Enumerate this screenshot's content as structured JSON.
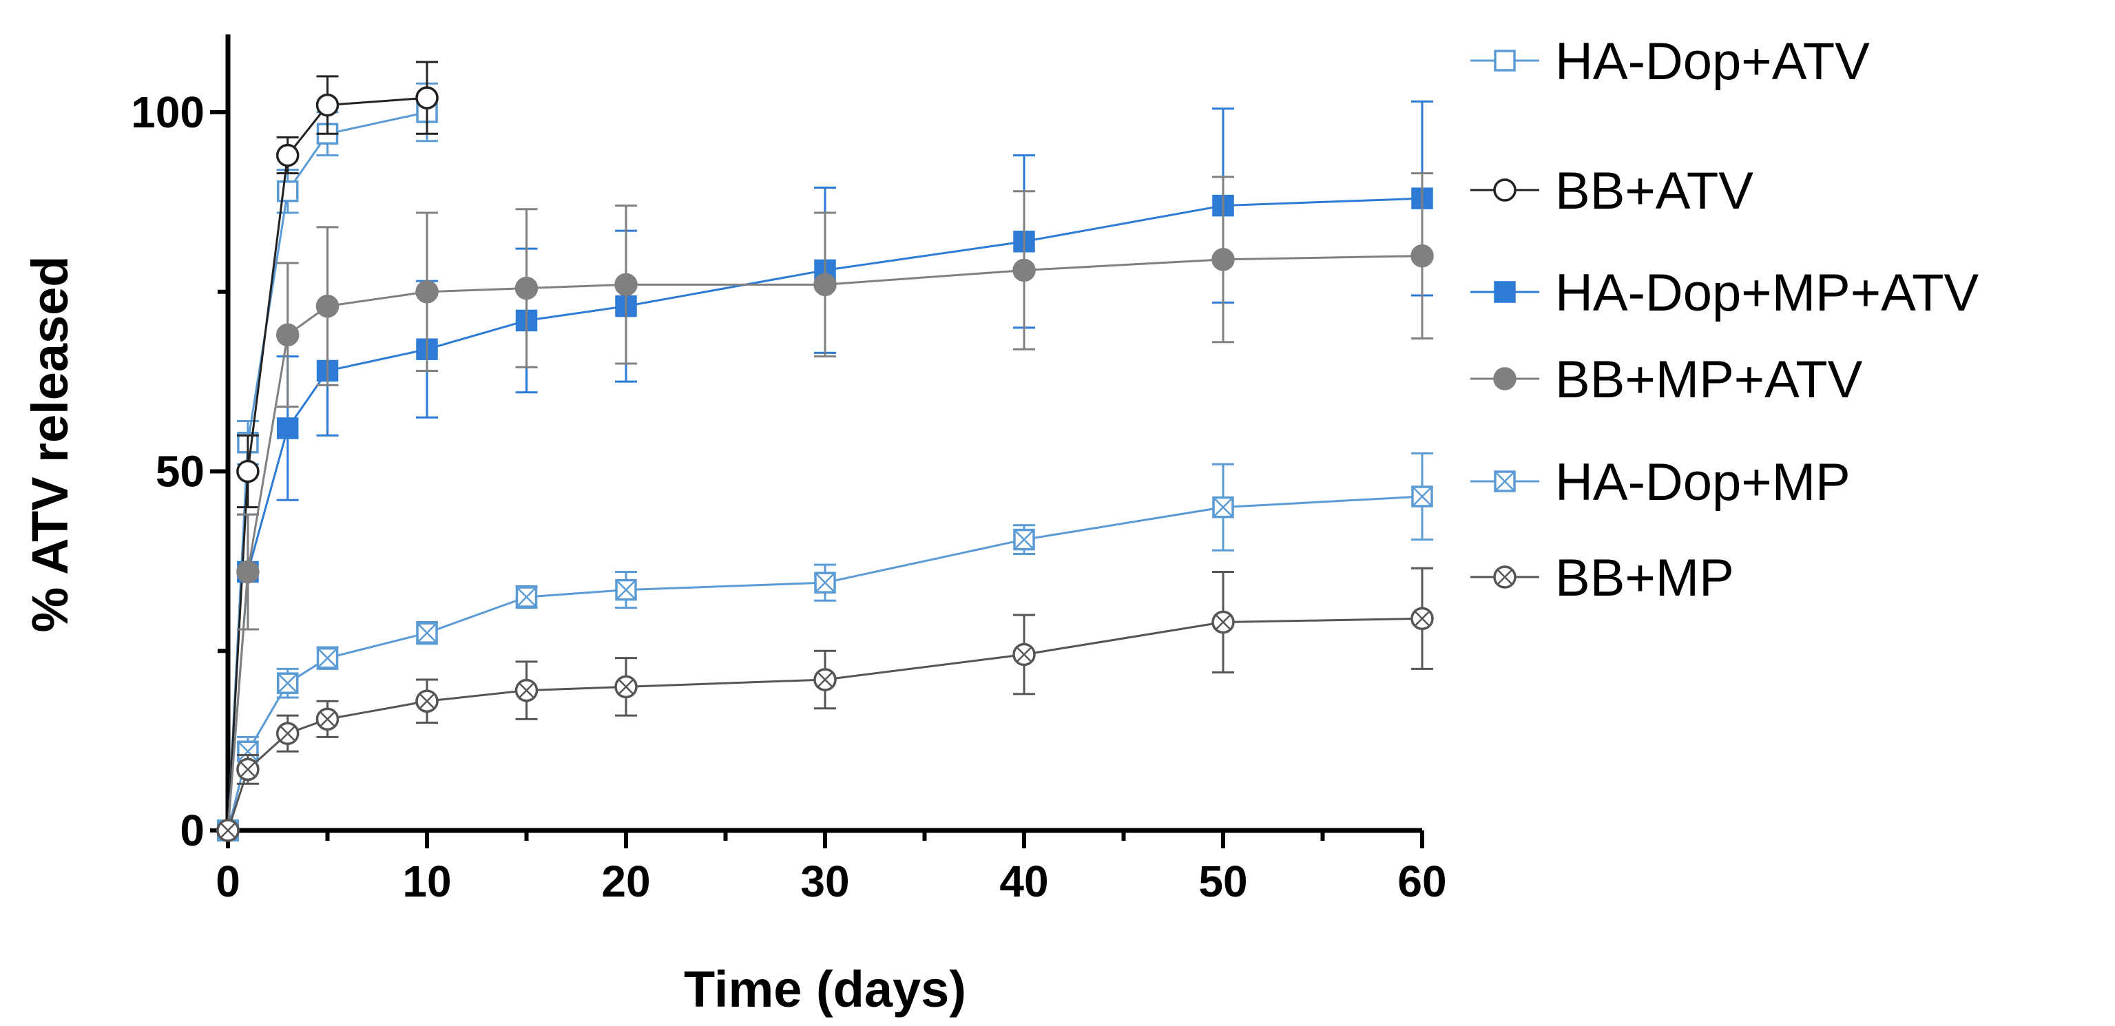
{
  "chart_data": {
    "type": "line",
    "title": "",
    "xlabel": "Time (days)",
    "ylabel": "% ATV released",
    "xlim": [
      0,
      60
    ],
    "ylim": [
      0,
      110
    ],
    "x_major_ticks": [
      0,
      10,
      20,
      30,
      40,
      50,
      60
    ],
    "x_minor_ticks": [
      5,
      15,
      25,
      35,
      45,
      55
    ],
    "x_tick_labels": [
      "0",
      "10",
      "20",
      "30",
      "40",
      "50",
      "60"
    ],
    "y_major_ticks": [
      0,
      50,
      100
    ],
    "y_minor_ticks": [
      25,
      75
    ],
    "y_tick_labels": [
      "0",
      "50",
      "100"
    ],
    "grid": false,
    "legend_position": "right",
    "series": [
      {
        "name": "HA-Dop+ATV",
        "marker": "square-open",
        "color": "#5b9bd5",
        "points": [
          {
            "x": 0,
            "y": 0,
            "err": 0
          },
          {
            "x": 1,
            "y": 54,
            "err": 3
          },
          {
            "x": 3,
            "y": 89,
            "err": 3
          },
          {
            "x": 5,
            "y": 97,
            "err": 3
          },
          {
            "x": 10,
            "y": 100,
            "err": 4
          }
        ]
      },
      {
        "name": "BB+ATV",
        "marker": "circle-open",
        "color": "#222222",
        "points": [
          {
            "x": 0,
            "y": 0,
            "err": 0
          },
          {
            "x": 1,
            "y": 50,
            "err": 5
          },
          {
            "x": 3,
            "y": 94,
            "err": 2.5
          },
          {
            "x": 5,
            "y": 101,
            "err": 4
          },
          {
            "x": 10,
            "y": 102,
            "err": 5
          }
        ]
      },
      {
        "name": "HA-Dop+MP+ATV",
        "marker": "square-filled",
        "color": "#2e7bd6",
        "points": [
          {
            "x": 0,
            "y": 0,
            "err": 0
          },
          {
            "x": 1,
            "y": 36,
            "err": 8
          },
          {
            "x": 3,
            "y": 56,
            "err": 10
          },
          {
            "x": 5,
            "y": 64,
            "err": 9
          },
          {
            "x": 10,
            "y": 67,
            "err": 9.5
          },
          {
            "x": 15,
            "y": 71,
            "err": 10
          },
          {
            "x": 20,
            "y": 73,
            "err": 10.5
          },
          {
            "x": 30,
            "y": 78,
            "err": 11.5
          },
          {
            "x": 40,
            "y": 82,
            "err": 12
          },
          {
            "x": 50,
            "y": 87,
            "err": 13.5
          },
          {
            "x": 60,
            "y": 88,
            "err": 13.5
          }
        ]
      },
      {
        "name": "BB+MP+ATV",
        "marker": "circle-filled",
        "color": "#808080",
        "points": [
          {
            "x": 0,
            "y": 0,
            "err": 0
          },
          {
            "x": 1,
            "y": 36,
            "err": 8
          },
          {
            "x": 3,
            "y": 69,
            "err": 10
          },
          {
            "x": 5,
            "y": 73,
            "err": 11
          },
          {
            "x": 10,
            "y": 75,
            "err": 11
          },
          {
            "x": 15,
            "y": 75.5,
            "err": 11
          },
          {
            "x": 20,
            "y": 76,
            "err": 11
          },
          {
            "x": 30,
            "y": 76,
            "err": 10
          },
          {
            "x": 40,
            "y": 78,
            "err": 11
          },
          {
            "x": 50,
            "y": 79.5,
            "err": 11.5
          },
          {
            "x": 60,
            "y": 80,
            "err": 11.5
          }
        ]
      },
      {
        "name": "HA-Dop+MP",
        "marker": "square-cross",
        "color": "#5b9bd5",
        "points": [
          {
            "x": 0,
            "y": 0,
            "err": 0
          },
          {
            "x": 1,
            "y": 11,
            "err": 2
          },
          {
            "x": 3,
            "y": 20.5,
            "err": 2
          },
          {
            "x": 5,
            "y": 24,
            "err": 1.5
          },
          {
            "x": 10,
            "y": 27.5,
            "err": 1.5
          },
          {
            "x": 15,
            "y": 32.5,
            "err": 1.5
          },
          {
            "x": 20,
            "y": 33.5,
            "err": 2.5
          },
          {
            "x": 30,
            "y": 34.5,
            "err": 2.5
          },
          {
            "x": 40,
            "y": 40.5,
            "err": 2
          },
          {
            "x": 50,
            "y": 45,
            "err": 6
          },
          {
            "x": 60,
            "y": 46.5,
            "err": 6
          }
        ]
      },
      {
        "name": "BB+MP",
        "marker": "circle-cross",
        "color": "#555555",
        "points": [
          {
            "x": 0,
            "y": 0,
            "err": 0
          },
          {
            "x": 1,
            "y": 8.5,
            "err": 2
          },
          {
            "x": 3,
            "y": 13.5,
            "err": 2.5
          },
          {
            "x": 5,
            "y": 15.5,
            "err": 2.5
          },
          {
            "x": 10,
            "y": 18,
            "err": 3
          },
          {
            "x": 15,
            "y": 19.5,
            "err": 4
          },
          {
            "x": 20,
            "y": 20,
            "err": 4
          },
          {
            "x": 30,
            "y": 21,
            "err": 4
          },
          {
            "x": 40,
            "y": 24.5,
            "err": 5.5
          },
          {
            "x": 50,
            "y": 29,
            "err": 7
          },
          {
            "x": 60,
            "y": 29.5,
            "err": 7
          }
        ]
      }
    ]
  }
}
